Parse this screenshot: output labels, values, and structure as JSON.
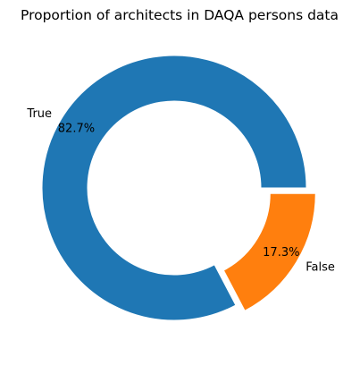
{
  "chart_data": {
    "type": "pie",
    "title": "Proportion of architects in DAQA persons data",
    "donut": true,
    "start_angle_deg": 0,
    "counterclockwise": true,
    "categories": [
      "True",
      "False"
    ],
    "values": [
      82.7,
      17.3
    ],
    "percent_labels": [
      "82.7%",
      "17.3%"
    ],
    "exploded": [
      false,
      true
    ],
    "colors": [
      "#1f77b4",
      "#ff7f0e"
    ],
    "legend": "none"
  }
}
